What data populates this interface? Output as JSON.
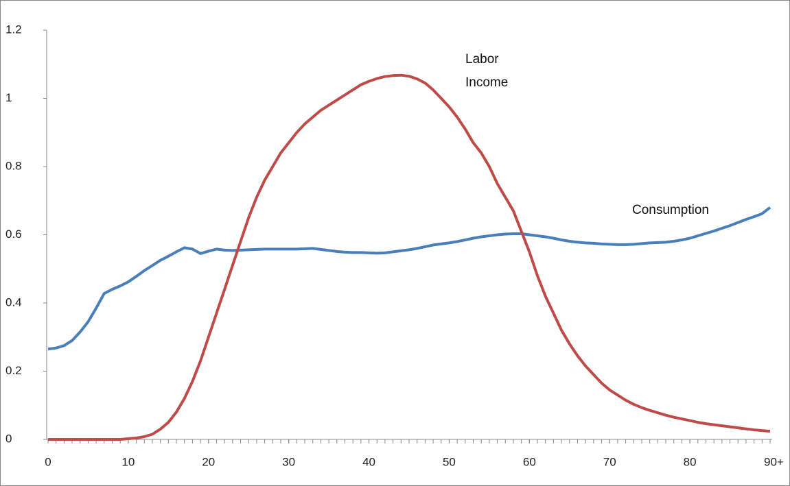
{
  "chart_data": {
    "type": "line",
    "x": [
      0,
      1,
      2,
      3,
      4,
      5,
      6,
      7,
      8,
      9,
      10,
      11,
      12,
      13,
      14,
      15,
      16,
      17,
      18,
      19,
      20,
      21,
      22,
      23,
      24,
      25,
      26,
      27,
      28,
      29,
      30,
      31,
      32,
      33,
      34,
      35,
      36,
      37,
      38,
      39,
      40,
      41,
      42,
      43,
      44,
      45,
      46,
      47,
      48,
      49,
      50,
      51,
      52,
      53,
      54,
      55,
      56,
      57,
      58,
      59,
      60,
      61,
      62,
      63,
      64,
      65,
      66,
      67,
      68,
      69,
      70,
      71,
      72,
      73,
      74,
      75,
      76,
      77,
      78,
      79,
      80,
      81,
      82,
      83,
      84,
      85,
      86,
      87,
      88,
      89,
      90
    ],
    "series": [
      {
        "name": "Consumption",
        "color": "#4a7ebb",
        "values": [
          0.265,
          0.268,
          0.275,
          0.29,
          0.315,
          0.345,
          0.385,
          0.428,
          0.44,
          0.45,
          0.462,
          0.478,
          0.495,
          0.51,
          0.525,
          0.537,
          0.55,
          0.562,
          0.558,
          0.545,
          0.552,
          0.558,
          0.555,
          0.554,
          0.555,
          0.556,
          0.557,
          0.558,
          0.558,
          0.558,
          0.558,
          0.558,
          0.559,
          0.56,
          0.557,
          0.554,
          0.551,
          0.549,
          0.548,
          0.548,
          0.547,
          0.546,
          0.547,
          0.55,
          0.553,
          0.556,
          0.56,
          0.565,
          0.57,
          0.573,
          0.576,
          0.58,
          0.585,
          0.59,
          0.594,
          0.597,
          0.6,
          0.602,
          0.603,
          0.603,
          0.6,
          0.597,
          0.594,
          0.59,
          0.585,
          0.581,
          0.578,
          0.576,
          0.575,
          0.573,
          0.572,
          0.571,
          0.571,
          0.572,
          0.574,
          0.576,
          0.577,
          0.578,
          0.581,
          0.585,
          0.59,
          0.597,
          0.604,
          0.611,
          0.619,
          0.627,
          0.636,
          0.645,
          0.653,
          0.662,
          0.68
        ]
      },
      {
        "name": "Labor Income",
        "color": "#be4b48",
        "values": [
          0,
          0,
          0,
          0,
          0,
          0,
          0,
          0,
          0,
          0,
          0.002,
          0.004,
          0.008,
          0.015,
          0.03,
          0.05,
          0.08,
          0.12,
          0.17,
          0.23,
          0.3,
          0.37,
          0.44,
          0.51,
          0.58,
          0.65,
          0.71,
          0.76,
          0.8,
          0.84,
          0.87,
          0.9,
          0.925,
          0.945,
          0.965,
          0.98,
          0.995,
          1.01,
          1.025,
          1.04,
          1.05,
          1.058,
          1.064,
          1.067,
          1.068,
          1.065,
          1.057,
          1.045,
          1.025,
          1.0,
          0.975,
          0.945,
          0.91,
          0.87,
          0.84,
          0.8,
          0.75,
          0.71,
          0.67,
          0.61,
          0.55,
          0.48,
          0.42,
          0.37,
          0.32,
          0.28,
          0.245,
          0.215,
          0.19,
          0.165,
          0.145,
          0.13,
          0.115,
          0.103,
          0.093,
          0.085,
          0.078,
          0.071,
          0.065,
          0.06,
          0.055,
          0.05,
          0.046,
          0.043,
          0.04,
          0.037,
          0.034,
          0.031,
          0.028,
          0.026,
          0.024
        ]
      }
    ],
    "xlim": [
      0,
      90
    ],
    "xticks": [
      0,
      10,
      20,
      30,
      40,
      50,
      60,
      70,
      80,
      {
        "value": 90,
        "label": "90+"
      }
    ],
    "ylim": [
      0,
      1.2
    ],
    "yticks": [
      0,
      0.2,
      0.4,
      0.6,
      0.8,
      1,
      1.2
    ],
    "grid": false
  }
}
